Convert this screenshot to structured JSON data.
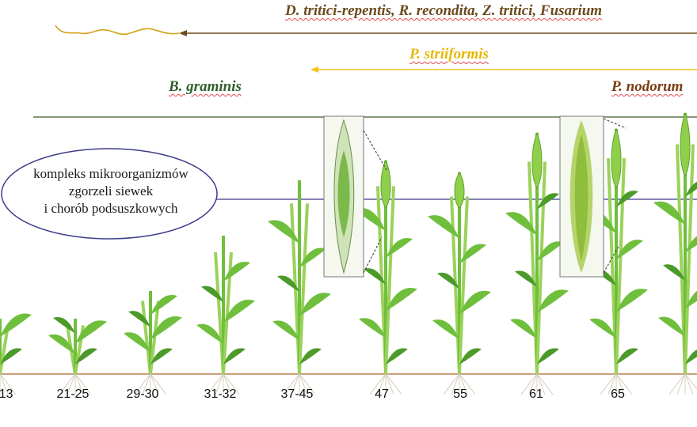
{
  "pathogens": {
    "top": "D. tritici-repentis, R. recondita, Z. tritici, Fusarium",
    "middle": "P. striiformis",
    "left": "B. graminis",
    "right": "P. nodorum"
  },
  "ellipse_label": {
    "line1": "kompleks mikroorganizmów",
    "line2": "zgorzeli siewek",
    "line3": "i chorób podsuszkowych"
  },
  "stages": [
    "-13",
    "21-25",
    "29-30",
    "31-32",
    "37-45",
    "47",
    "55",
    "61",
    "65"
  ],
  "colors": {
    "top_pathogen": "#6b4a1c",
    "middle_pathogen": "#f2c21a",
    "left_pathogen": "#2f5f2a",
    "right_pathogen": "#7a3b12",
    "plant_green": "#6fbf3c",
    "ellipse_stroke": "#3c3c8c",
    "soil": "#c9a07a"
  }
}
